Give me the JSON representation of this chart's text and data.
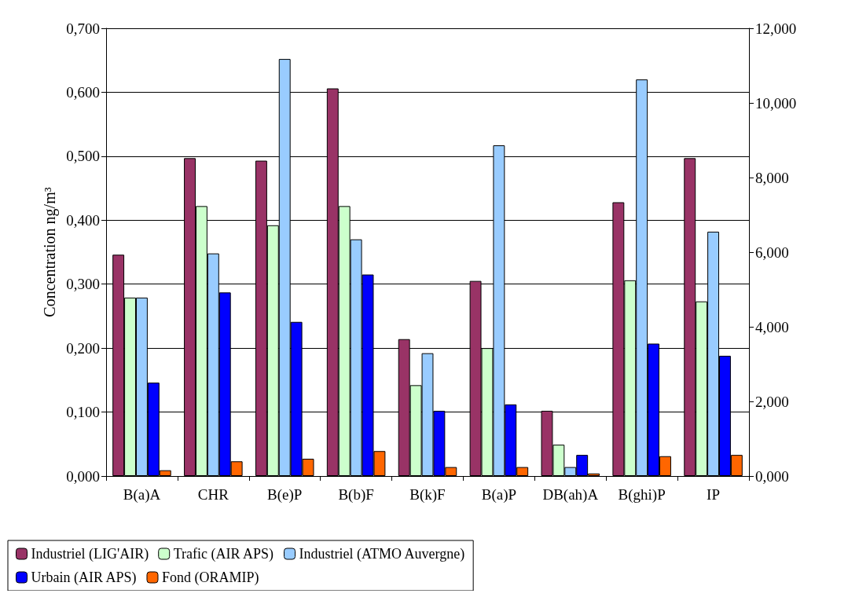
{
  "chart_data": {
    "type": "bar",
    "ylabel": "Concentration ng/m³",
    "categories": [
      "B(a)A",
      "CHR",
      "B(e)P",
      "B(b)F",
      "B(k)F",
      "B(a)P",
      "DB(ah)A",
      "B(ghi)P",
      "IP"
    ],
    "series": [
      {
        "name": "Industriel (LIG'AIR)",
        "color": "#993366",
        "values": [
          0.346,
          0.497,
          0.493,
          0.606,
          0.214,
          0.305,
          0.102,
          0.428,
          0.497
        ]
      },
      {
        "name": "Trafic (AIR APS)",
        "color": "#ccffcc",
        "values": [
          0.279,
          0.422,
          0.392,
          0.422,
          0.142,
          0.2,
          0.049,
          0.306,
          0.273
        ]
      },
      {
        "name": "Industriel (ATMO Auvergne)",
        "color": "#99ccff",
        "values": [
          0.279,
          0.348,
          0.652,
          0.37,
          0.192,
          0.517,
          0.014,
          0.62,
          0.382
        ]
      },
      {
        "name": "Urbain (AIR APS)",
        "color": "#0000ff",
        "values": [
          0.146,
          0.287,
          0.241,
          0.315,
          0.102,
          0.112,
          0.033,
          0.207,
          0.188
        ]
      },
      {
        "name": "Fond (ORAMIP)",
        "color": "#ff6600",
        "values": [
          0.009,
          0.023,
          0.027,
          0.039,
          0.014,
          0.014,
          0.004,
          0.031,
          0.033
        ]
      }
    ],
    "ylim": [
      0,
      0.7
    ],
    "yticks": [
      {
        "value": 0,
        "label": "0,000"
      },
      {
        "value": 0.1,
        "label": "0,100"
      },
      {
        "value": 0.2,
        "label": "0,200"
      },
      {
        "value": 0.3,
        "label": "0,300"
      },
      {
        "value": 0.4,
        "label": "0,400"
      },
      {
        "value": 0.5,
        "label": "0,500"
      },
      {
        "value": 0.6,
        "label": "0,600"
      },
      {
        "value": 0.7,
        "label": "0,700"
      }
    ],
    "y2lim": [
      0,
      12
    ],
    "y2ticks": [
      {
        "value": 0,
        "label": "0,000"
      },
      {
        "value": 2,
        "label": "2,000"
      },
      {
        "value": 4,
        "label": "4,000"
      },
      {
        "value": 6,
        "label": "6,000"
      },
      {
        "value": 8,
        "label": "8,000"
      },
      {
        "value": 10,
        "label": "10,000"
      },
      {
        "value": 12,
        "label": "12,000"
      }
    ],
    "grid": "y",
    "legend": "bottom"
  }
}
